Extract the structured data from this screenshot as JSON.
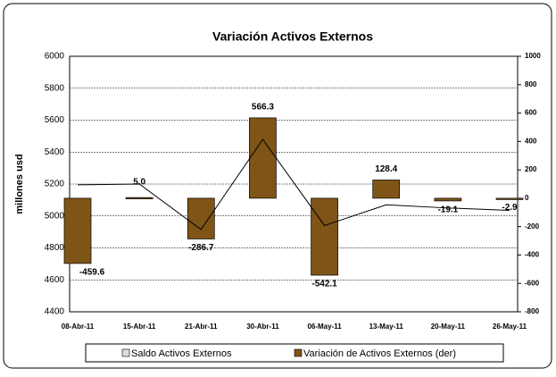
{
  "chart_data": {
    "type": "bar-line",
    "title": "Variación Activos Externos",
    "ylabel": "millones usd",
    "categories": [
      "08-Abr-11",
      "15-Abr-11",
      "21-Abr-11",
      "30-Abr-11",
      "06-May-11",
      "13-May-11",
      "20-May-11",
      "26-May-11"
    ],
    "series": [
      {
        "name": "Saldo Activos Externos",
        "type": "line",
        "color": "#000000",
        "values": [
          5195,
          5200,
          4915,
          5480,
          4940,
          5070,
          5050,
          5035
        ]
      },
      {
        "name": "Variación de Activos Externos (der)",
        "type": "bar",
        "axis": "y2",
        "color": "#7f5417",
        "values": [
          -459.6,
          5.0,
          -286.7,
          566.3,
          -542.1,
          128.4,
          -19.1,
          -2.9
        ],
        "value_labels": [
          "-459.6",
          "5.0",
          "-286.7",
          "566.3",
          "-542.1",
          "128.4",
          "-19.1",
          "-2.9"
        ]
      }
    ],
    "ylim": [
      4400,
      6000
    ],
    "yticks": [
      4400,
      4600,
      4800,
      5000,
      5200,
      5400,
      5600,
      5800,
      6000
    ],
    "y2lim": [
      -800,
      1000
    ],
    "y2ticks": [
      -800,
      -600,
      -400,
      -200,
      0,
      200,
      400,
      600,
      800,
      1000
    ],
    "grid": true,
    "legend": "bottom"
  }
}
